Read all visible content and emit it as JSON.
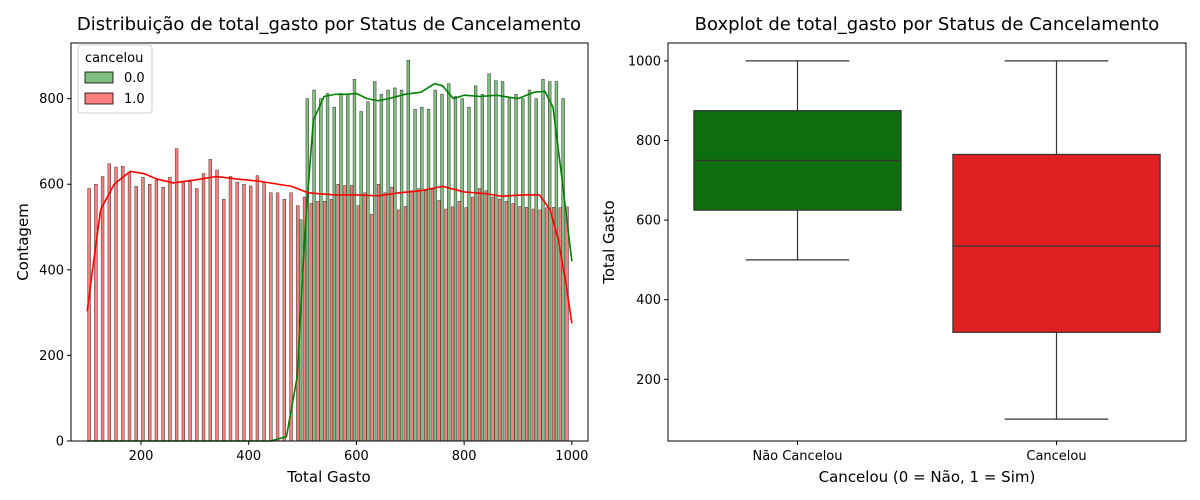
{
  "chart_data": [
    {
      "type": "histogram",
      "title": "Distribuição de total_gasto por Status de Cancelamento",
      "xlabel": "Total Gasto",
      "ylabel": "Contagem",
      "xlim": [
        70,
        1030
      ],
      "ylim": [
        0,
        930
      ],
      "xticks": [
        200,
        400,
        600,
        800,
        1000
      ],
      "yticks": [
        0,
        200,
        400,
        600,
        800
      ],
      "grid": false,
      "legend": {
        "title": "cancelou",
        "placement": "top-left",
        "entries": [
          "0.0",
          "1.0"
        ]
      },
      "bin_centers": [
        106.25,
        118.75,
        131.25,
        143.75,
        156.25,
        168.75,
        181.25,
        193.75,
        206.25,
        218.75,
        231.25,
        243.75,
        256.25,
        268.75,
        281.25,
        293.75,
        306.25,
        318.75,
        331.25,
        343.75,
        356.25,
        368.75,
        381.25,
        393.75,
        406.25,
        418.75,
        431.25,
        443.75,
        456.25,
        468.75,
        481.25,
        493.75,
        506.25,
        518.75,
        531.25,
        543.75,
        556.25,
        568.75,
        581.25,
        593.75,
        606.25,
        618.75,
        631.25,
        643.75,
        656.25,
        668.75,
        681.25,
        693.75,
        706.25,
        718.75,
        731.25,
        743.75,
        756.25,
        768.75,
        781.25,
        793.75,
        806.25,
        818.75,
        831.25,
        843.75,
        856.25,
        868.75,
        881.25,
        893.75,
        906.25,
        918.75,
        931.25,
        943.75,
        956.25,
        968.75,
        981.25,
        993.75
      ],
      "series": [
        {
          "name": "0.0",
          "color": "#008000",
          "values": [
            0,
            0,
            0,
            0,
            0,
            0,
            0,
            0,
            0,
            0,
            0,
            0,
            0,
            0,
            0,
            0,
            0,
            0,
            0,
            0,
            0,
            0,
            0,
            0,
            0,
            0,
            0,
            0,
            0,
            0,
            0,
            517,
            800,
            820,
            800,
            812,
            780,
            812,
            810,
            845,
            770,
            793,
            840,
            810,
            820,
            825,
            820,
            890,
            775,
            780,
            775,
            820,
            810,
            835,
            805,
            800,
            780,
            830,
            810,
            858,
            842,
            840,
            800,
            810,
            800,
            820,
            800,
            845,
            840,
            840,
            800,
            0
          ],
          "kde": [
            [
              100,
              0
            ],
            [
              300,
              0
            ],
            [
              440,
              0
            ],
            [
              470,
              10
            ],
            [
              490,
              150
            ],
            [
              505,
              500
            ],
            [
              520,
              750
            ],
            [
              540,
              805
            ],
            [
              560,
              810
            ],
            [
              580,
              810
            ],
            [
              600,
              812
            ],
            [
              620,
              800
            ],
            [
              640,
              795
            ],
            [
              660,
              800
            ],
            [
              690,
              810
            ],
            [
              720,
              815
            ],
            [
              745,
              835
            ],
            [
              760,
              830
            ],
            [
              780,
              800
            ],
            [
              800,
              808
            ],
            [
              830,
              805
            ],
            [
              860,
              808
            ],
            [
              900,
              800
            ],
            [
              930,
              815
            ],
            [
              950,
              817
            ],
            [
              965,
              780
            ],
            [
              980,
              630
            ],
            [
              1000,
              420
            ]
          ]
        },
        {
          "name": "1.0",
          "color": "#ff0000",
          "values": [
            590,
            600,
            618,
            648,
            640,
            642,
            627,
            595,
            616,
            600,
            610,
            593,
            616,
            683,
            605,
            606,
            590,
            625,
            658,
            633,
            565,
            618,
            605,
            600,
            596,
            620,
            605,
            580,
            580,
            565,
            580,
            550,
            570,
            555,
            560,
            560,
            565,
            600,
            597,
            597,
            550,
            580,
            530,
            600,
            580,
            593,
            540,
            548,
            585,
            590,
            585,
            588,
            562,
            542,
            547,
            560,
            545,
            570,
            590,
            585,
            570,
            565,
            560,
            555,
            548,
            546,
            542,
            540,
            545,
            546,
            545,
            547
          ],
          "kde": [
            [
              100,
              303
            ],
            [
              110,
              400
            ],
            [
              125,
              540
            ],
            [
              150,
              600
            ],
            [
              180,
              630
            ],
            [
              205,
              625
            ],
            [
              230,
              612
            ],
            [
              260,
              603
            ],
            [
              300,
              610
            ],
            [
              340,
              618
            ],
            [
              380,
              612
            ],
            [
              420,
              607
            ],
            [
              455,
              600
            ],
            [
              480,
              595
            ],
            [
              510,
              580
            ],
            [
              560,
              575
            ],
            [
              600,
              575
            ],
            [
              640,
              573
            ],
            [
              680,
              580
            ],
            [
              720,
              585
            ],
            [
              760,
              595
            ],
            [
              800,
              582
            ],
            [
              840,
              578
            ],
            [
              870,
              572
            ],
            [
              910,
              575
            ],
            [
              940,
              575
            ],
            [
              960,
              540
            ],
            [
              975,
              470
            ],
            [
              990,
              360
            ],
            [
              1000,
              275
            ]
          ]
        }
      ]
    },
    {
      "type": "box",
      "title": "Boxplot de total_gasto por Status de Cancelamento",
      "xlabel": "Cancelou (0 = Não, 1 = Sim)",
      "ylabel": "Total Gasto",
      "ylim": [
        45,
        1045
      ],
      "yticks": [
        200,
        400,
        600,
        800,
        1000
      ],
      "grid": false,
      "categories": [
        "Não Cancelou",
        "Cancelou"
      ],
      "boxes": [
        {
          "category": "Não Cancelou",
          "color": "#0d6e0d",
          "min": 500,
          "q1": 625,
          "median": 750,
          "q3": 875,
          "max": 1000
        },
        {
          "category": "Cancelou",
          "color": "#e02020",
          "min": 100,
          "q1": 318,
          "median": 535,
          "q3": 765,
          "max": 1000
        }
      ]
    }
  ]
}
